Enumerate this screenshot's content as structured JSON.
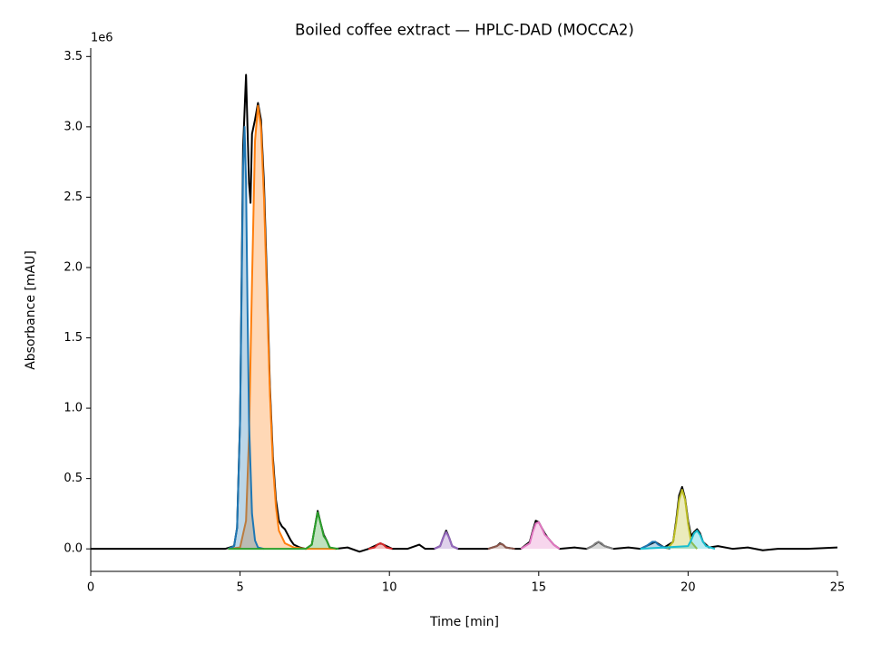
{
  "chart_data": {
    "type": "line",
    "title": "Boiled coffee extract — HPLC-DAD (MOCCA2)",
    "xlabel": "Time [min]",
    "ylabel": "Absorbance [mAU]",
    "y_offset_label": "1e6",
    "xlim": [
      0,
      25
    ],
    "ylim": [
      -0.16,
      3.56
    ],
    "xticks": [
      0,
      5,
      10,
      15,
      20,
      25
    ],
    "yticks": [
      {
        "value": 0,
        "label": "0.0"
      },
      0.5,
      {
        "value": 1,
        "label": "1.0"
      },
      1.5,
      {
        "value": 2,
        "label": "2.0"
      },
      2.5,
      {
        "value": 3,
        "label": "3.0"
      },
      3.5
    ],
    "grid": false,
    "series": [
      {
        "color": "#000000",
        "fill": false,
        "x": [
          0,
          4.5,
          4.8,
          4.9,
          5.0,
          5.1,
          5.2,
          5.3,
          5.35,
          5.4,
          5.5,
          5.6,
          5.7,
          5.8,
          5.9,
          6.0,
          6.1,
          6.2,
          6.3,
          6.4,
          6.5,
          6.6,
          6.7,
          6.8,
          7.0,
          7.2,
          7.4,
          7.5,
          7.6,
          7.7,
          7.8,
          7.9,
          8.0,
          8.2,
          8.6,
          9.0,
          9.3,
          9.6,
          9.7,
          9.8,
          10.1,
          10.6,
          11.0,
          11.2,
          11.5,
          11.7,
          11.8,
          11.9,
          12.0,
          12.1,
          12.3,
          12.8,
          13.3,
          13.6,
          13.7,
          13.8,
          13.9,
          14.2,
          14.4,
          14.7,
          14.8,
          14.9,
          15.0,
          15.1,
          15.2,
          15.3,
          15.5,
          15.7,
          16.2,
          16.6,
          16.8,
          17.0,
          17.2,
          17.5,
          18.0,
          18.4,
          18.6,
          18.9,
          19.2,
          19.5,
          19.6,
          19.7,
          19.8,
          19.9,
          20.0,
          20.1,
          20.2,
          20.3,
          20.4,
          20.5,
          20.7,
          21.0,
          21.5,
          22.0,
          22.5,
          23.0,
          24.0,
          25.0
        ],
        "values": [
          0,
          0,
          0.02,
          0.15,
          0.92,
          2.85,
          3.37,
          2.6,
          2.46,
          2.95,
          3.05,
          3.17,
          3.05,
          2.6,
          1.9,
          1.15,
          0.65,
          0.35,
          0.2,
          0.16,
          0.14,
          0.1,
          0.06,
          0.03,
          0.01,
          0,
          0.03,
          0.15,
          0.27,
          0.18,
          0.1,
          0.06,
          0.01,
          0,
          0.01,
          -0.02,
          0,
          0.03,
          0.04,
          0.03,
          0,
          0,
          0.03,
          0,
          0,
          0.02,
          0.08,
          0.13,
          0.08,
          0.02,
          0,
          0,
          0,
          0.02,
          0.04,
          0.03,
          0.01,
          0,
          0,
          0.05,
          0.13,
          0.2,
          0.19,
          0.15,
          0.11,
          0.08,
          0.03,
          0,
          0.01,
          0,
          0.02,
          0.05,
          0.02,
          0,
          0.01,
          0,
          0.02,
          0.05,
          0.01,
          0.05,
          0.2,
          0.38,
          0.44,
          0.36,
          0.2,
          0.09,
          0.12,
          0.14,
          0.11,
          0.05,
          0.01,
          0.02,
          0,
          0.01,
          -0.01,
          0,
          0,
          0.01
        ]
      },
      {
        "color": "#ff7f0e",
        "fill": true,
        "x": [
          4.6,
          5.0,
          5.2,
          5.3,
          5.4,
          5.5,
          5.6,
          5.7,
          5.8,
          5.9,
          6.0,
          6.1,
          6.2,
          6.3,
          6.5,
          6.8,
          7.2,
          8.2
        ],
        "values": [
          0,
          0.01,
          0.2,
          0.8,
          1.9,
          2.9,
          3.15,
          3.0,
          2.5,
          1.8,
          1.1,
          0.6,
          0.3,
          0.13,
          0.04,
          0.01,
          0,
          0
        ]
      },
      {
        "color": "#1f77b4",
        "fill": true,
        "x": [
          4.6,
          4.8,
          4.9,
          5.0,
          5.05,
          5.1,
          5.15,
          5.2,
          5.25,
          5.3,
          5.4,
          5.5,
          5.6,
          5.8
        ],
        "values": [
          0,
          0.02,
          0.15,
          0.9,
          1.8,
          2.7,
          3.0,
          2.6,
          1.7,
          0.9,
          0.25,
          0.06,
          0.01,
          0
        ]
      },
      {
        "color": "#2ca02c",
        "fill": true,
        "x": [
          4.6,
          7.2,
          7.4,
          7.5,
          7.6,
          7.7,
          7.8,
          7.9,
          8.0,
          8.3
        ],
        "values": [
          0,
          0,
          0.03,
          0.15,
          0.26,
          0.18,
          0.09,
          0.06,
          0.01,
          0
        ]
      },
      {
        "color": "#d62728",
        "fill": true,
        "x": [
          9.3,
          9.5,
          9.6,
          9.7,
          9.8,
          9.9,
          10.1
        ],
        "values": [
          0,
          0.01,
          0.03,
          0.04,
          0.03,
          0.01,
          0
        ]
      },
      {
        "color": "#9467bd",
        "fill": true,
        "x": [
          11.5,
          11.7,
          11.8,
          11.9,
          12.0,
          12.1,
          12.3
        ],
        "values": [
          0,
          0.02,
          0.08,
          0.12,
          0.08,
          0.02,
          0
        ]
      },
      {
        "color": "#8c564b",
        "fill": true,
        "x": [
          13.3,
          13.6,
          13.7,
          13.8,
          13.9,
          14.2
        ],
        "values": [
          0,
          0.02,
          0.035,
          0.03,
          0.01,
          0
        ]
      },
      {
        "color": "#e377c2",
        "fill": true,
        "x": [
          14.4,
          14.7,
          14.8,
          14.9,
          15.0,
          15.1,
          15.2,
          15.3,
          15.5,
          15.7
        ],
        "values": [
          0,
          0.04,
          0.12,
          0.18,
          0.19,
          0.15,
          0.1,
          0.08,
          0.03,
          0
        ]
      },
      {
        "color": "#7f7f7f",
        "fill": true,
        "x": [
          16.6,
          16.8,
          16.9,
          17.0,
          17.1,
          17.2,
          17.5
        ],
        "values": [
          0,
          0.02,
          0.04,
          0.05,
          0.04,
          0.02,
          0
        ]
      },
      {
        "color": "#1f77b4",
        "fill": true,
        "x": [
          18.4,
          18.6,
          18.8,
          18.9,
          19.0,
          19.2,
          19.4
        ],
        "values": [
          0,
          0.02,
          0.05,
          0.05,
          0.03,
          0.01,
          0
        ]
      },
      {
        "color": "#bcbd22",
        "fill": true,
        "x": [
          19.3,
          19.5,
          19.6,
          19.7,
          19.8,
          19.9,
          20.0,
          20.1,
          20.3
        ],
        "values": [
          0,
          0.05,
          0.18,
          0.35,
          0.42,
          0.35,
          0.18,
          0.05,
          0
        ]
      },
      {
        "color": "#17becf",
        "fill": true,
        "x": [
          18.4,
          20.0,
          20.1,
          20.2,
          20.3,
          20.4,
          20.5,
          20.6,
          20.9
        ],
        "values": [
          0,
          0.02,
          0.06,
          0.11,
          0.13,
          0.1,
          0.05,
          0.02,
          0
        ]
      }
    ]
  }
}
